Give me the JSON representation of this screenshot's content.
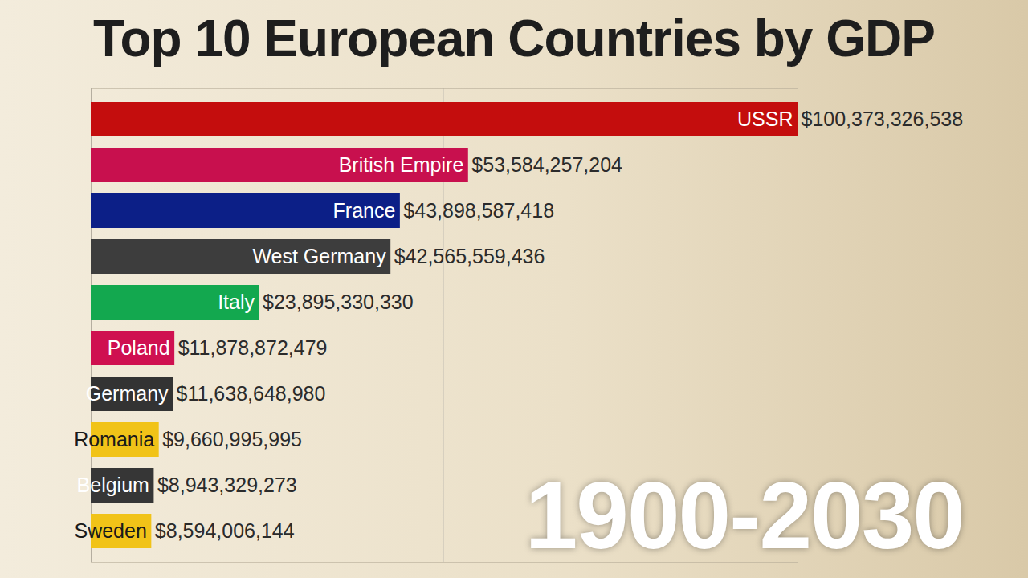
{
  "chart_data": {
    "type": "bar",
    "orientation": "horizontal",
    "title": "Top 10 European Countries by GDP",
    "annotation": "1900-2030",
    "categories": [
      "USSR",
      "British Empire",
      "France",
      "West Germany",
      "Italy",
      "Poland",
      "Germany",
      "Romania",
      "Belgium",
      "Sweden"
    ],
    "values": [
      100373326538,
      53584257204,
      43898587418,
      42565559436,
      23895330330,
      11878872479,
      11638648980,
      9660995995,
      8943329273,
      8594006144
    ],
    "value_labels": [
      "$100,373,326,538",
      "$53,584,257,204",
      "$43,898,587,418",
      "$42,565,559,436",
      "$23,895,330,330",
      "$11,878,872,479",
      "$11,638,648,980",
      "$9,660,995,995",
      "$8,943,329,273",
      "$8,594,006,144"
    ],
    "colors": [
      "#c40d0d",
      "#c8104e",
      "#0c1f87",
      "#3d3d3d",
      "#13a84f",
      "#cf1050",
      "#333333",
      "#f1c318",
      "#363636",
      "#f1c318"
    ],
    "xlim": [
      0,
      100373326538
    ],
    "xticks": [
      0,
      50000000000
    ],
    "grid": true,
    "data_labels": true,
    "tick_labels": false
  }
}
